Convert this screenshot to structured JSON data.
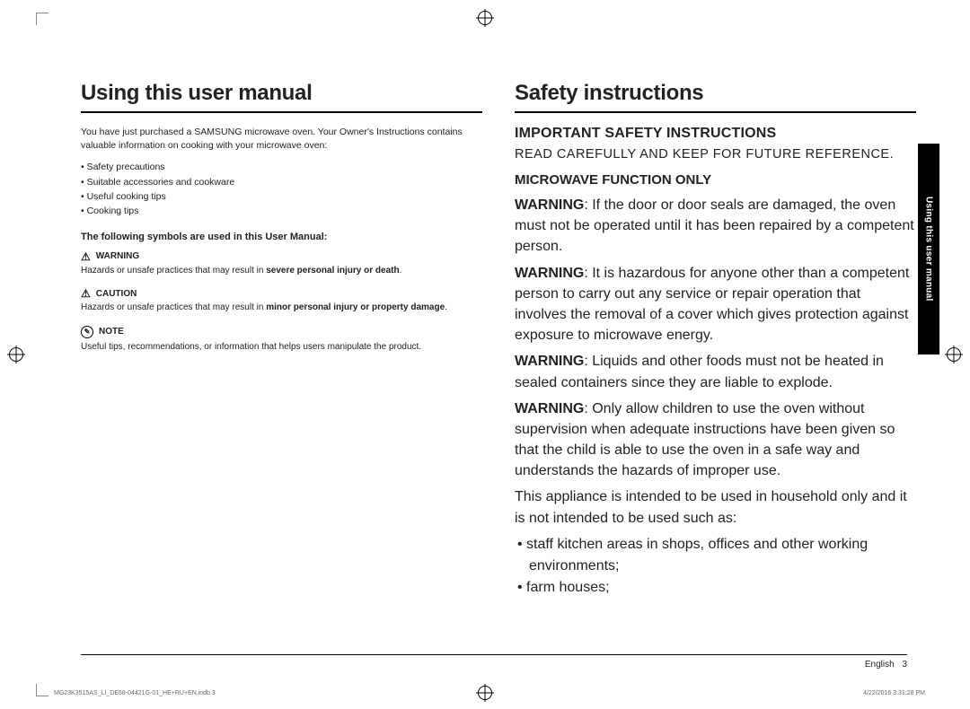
{
  "left": {
    "title": "Using this user manual",
    "intro": "You have just purchased a SAMSUNG microwave oven. Your Owner's Instructions contains valuable information on cooking with your microwave oven:",
    "bullets": [
      "Safety precautions",
      "Suitable accessories and cookware",
      "Useful cooking tips",
      "Cooking tips"
    ],
    "symbols_line": "The following symbols are used in this User Manual:",
    "warning_label": "WARNING",
    "warning_text_a": "Hazards or unsafe practices that may result in ",
    "warning_text_b": "severe personal injury or death",
    "warning_text_c": ".",
    "caution_label": "CAUTION",
    "caution_text_a": "Hazards or unsafe practices that may result in ",
    "caution_text_b": "minor personal injury or property damage",
    "caution_text_c": ".",
    "note_label": "NOTE",
    "note_text": "Useful tips, recommendations, or information that helps users manipulate the product."
  },
  "right": {
    "title": "Safety instructions",
    "h2": "IMPORTANT SAFETY INSTRUCTIONS",
    "readline": "READ CAREFULLY AND KEEP FOR FUTURE REFERENCE.",
    "h3": "MICROWAVE FUNCTION ONLY",
    "warn_label": "WARNING",
    "p1": ": If the door or door seals are damaged, the oven must not be operated until it has been repaired by a competent person.",
    "p2": ": It is hazardous for anyone other than a competent person to carry out any service or repair operation that involves the removal of a cover which gives protection against exposure to microwave energy.",
    "p3": ": Liquids and other foods must not be heated in sealed containers since they are liable to explode.",
    "p4": ": Only allow children to use the oven without supervision when adequate instructions have been given so that the child is able to use the oven in a safe way and understands the hazards of improper use.",
    "p5": "This appliance is intended to be used in household only and it is not intended to be used such as:",
    "li1": "staff kitchen areas in shops, offices and other working environments;",
    "li2": "farm houses;"
  },
  "sidetab": "Using this user manual",
  "footer": {
    "lang": "English",
    "page": "3"
  },
  "print": {
    "left": "MG23K3515AS_LI_DE68-04421G-01_HE+RU+EN.indb   3",
    "right": "4/22/2016   3:31:28 PM"
  }
}
